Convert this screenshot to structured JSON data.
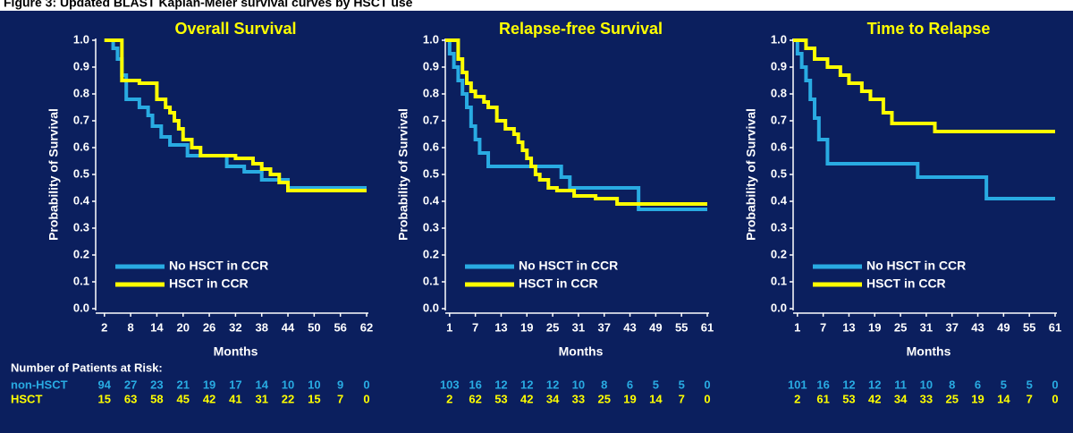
{
  "title": "Figure 3: Updated BLAST Kaplan-Meier survival curves by HSCT use",
  "at_risk": {
    "title": "Number of Patients at Risk:",
    "rows": [
      {
        "name": "non-HSCT",
        "color": "#29abe2"
      },
      {
        "name": "HSCT",
        "color": "#ffff00"
      }
    ]
  },
  "chart_data": [
    {
      "type": "line",
      "step": true,
      "title": "Overall Survival",
      "xlabel": "Months",
      "ylabel": "Probability of Survival",
      "xlim": [
        0,
        62
      ],
      "xticks": [
        2,
        8,
        14,
        20,
        26,
        32,
        38,
        44,
        50,
        56,
        62
      ],
      "ylim": [
        0,
        1
      ],
      "yticks": [
        {
          "value": 0,
          "label": "0.0"
        },
        {
          "value": 0.1,
          "label": "0.1"
        },
        {
          "value": 0.2,
          "label": "0.2"
        },
        {
          "value": 0.3,
          "label": "0.3"
        },
        {
          "value": 0.4,
          "label": "0.4"
        },
        {
          "value": 0.5,
          "label": "0.5"
        },
        {
          "value": 0.6,
          "label": "0.6"
        },
        {
          "value": 0.7,
          "label": "0.7"
        },
        {
          "value": 0.8,
          "label": "0.8"
        },
        {
          "value": 0.9,
          "label": "0.9"
        },
        {
          "value": 1,
          "label": "1.0"
        }
      ],
      "series": [
        {
          "name": "No HSCT in CCR",
          "color": "#29abe2",
          "x": [
            2,
            4,
            5,
            6,
            7,
            10,
            12,
            13,
            15,
            17,
            21,
            30,
            34,
            38,
            44,
            62
          ],
          "values": [
            1.0,
            0.97,
            0.93,
            0.87,
            0.78,
            0.75,
            0.72,
            0.68,
            0.64,
            0.61,
            0.57,
            0.53,
            0.51,
            0.48,
            0.45,
            0.45
          ]
        },
        {
          "name": "HSCT in CCR",
          "color": "#ffff00",
          "x": [
            2,
            6,
            10,
            14,
            16,
            17,
            18,
            19,
            20,
            22,
            24,
            32,
            36,
            38,
            40,
            42,
            44,
            62
          ],
          "values": [
            1.0,
            0.85,
            0.84,
            0.78,
            0.75,
            0.73,
            0.7,
            0.67,
            0.63,
            0.6,
            0.57,
            0.56,
            0.54,
            0.52,
            0.5,
            0.47,
            0.44,
            0.44
          ]
        }
      ],
      "at_risk": [
        [
          94,
          27,
          23,
          21,
          19,
          17,
          14,
          10,
          10,
          9,
          0
        ],
        [
          15,
          63,
          58,
          45,
          42,
          41,
          31,
          22,
          15,
          7,
          0
        ]
      ]
    },
    {
      "type": "line",
      "step": true,
      "title": "Relapse-free Survival",
      "xlabel": "Months",
      "ylabel": "Probability of Survival",
      "xlim": [
        0,
        61
      ],
      "xticks": [
        1,
        7,
        13,
        19,
        25,
        31,
        37,
        43,
        49,
        55,
        61
      ],
      "ylim": [
        0,
        1
      ],
      "yticks": [
        {
          "value": 0,
          "label": "0.0"
        },
        {
          "value": 0.1,
          "label": "0.1"
        },
        {
          "value": 0.2,
          "label": "0.2"
        },
        {
          "value": 0.3,
          "label": "0.3"
        },
        {
          "value": 0.4,
          "label": "0.4"
        },
        {
          "value": 0.5,
          "label": "0.5"
        },
        {
          "value": 0.6,
          "label": "0.6"
        },
        {
          "value": 0.7,
          "label": "0.7"
        },
        {
          "value": 0.8,
          "label": "0.8"
        },
        {
          "value": 0.9,
          "label": "0.9"
        },
        {
          "value": 1,
          "label": "1.0"
        }
      ],
      "series": [
        {
          "name": "No HSCT in CCR",
          "color": "#29abe2",
          "x": [
            0,
            1,
            2,
            3,
            4,
            5,
            6,
            7,
            8,
            10,
            27,
            29,
            45,
            61
          ],
          "values": [
            1.0,
            0.95,
            0.9,
            0.85,
            0.8,
            0.75,
            0.68,
            0.63,
            0.58,
            0.53,
            0.49,
            0.45,
            0.37,
            0.37
          ]
        },
        {
          "name": "HSCT in CCR",
          "color": "#ffff00",
          "x": [
            0,
            3,
            4,
            5,
            6,
            7,
            9,
            10,
            12,
            14,
            16,
            17,
            18,
            19,
            20,
            21,
            22,
            24,
            26,
            30,
            35,
            40,
            61
          ],
          "values": [
            1.0,
            0.93,
            0.88,
            0.84,
            0.81,
            0.79,
            0.77,
            0.75,
            0.7,
            0.67,
            0.65,
            0.62,
            0.59,
            0.56,
            0.53,
            0.5,
            0.48,
            0.45,
            0.44,
            0.42,
            0.41,
            0.39,
            0.39
          ]
        }
      ],
      "at_risk": [
        [
          103,
          16,
          12,
          12,
          12,
          10,
          8,
          6,
          5,
          5,
          0
        ],
        [
          2,
          62,
          53,
          42,
          34,
          33,
          25,
          19,
          14,
          7,
          0
        ]
      ]
    },
    {
      "type": "line",
      "step": true,
      "title": "Time to Relapse",
      "xlabel": "Months",
      "ylabel": "Probability of Survival",
      "xlim": [
        0,
        61
      ],
      "xticks": [
        1,
        7,
        13,
        19,
        25,
        31,
        37,
        43,
        49,
        55,
        61
      ],
      "ylim": [
        0,
        1
      ],
      "yticks": [
        {
          "value": 0,
          "label": "0.0"
        },
        {
          "value": 0.1,
          "label": "0.1"
        },
        {
          "value": 0.2,
          "label": "0.2"
        },
        {
          "value": 0.3,
          "label": "0.3"
        },
        {
          "value": 0.4,
          "label": "0.4"
        },
        {
          "value": 0.5,
          "label": "0.5"
        },
        {
          "value": 0.6,
          "label": "0.6"
        },
        {
          "value": 0.7,
          "label": "0.7"
        },
        {
          "value": 0.8,
          "label": "0.8"
        },
        {
          "value": 0.9,
          "label": "0.9"
        },
        {
          "value": 1,
          "label": "1.0"
        }
      ],
      "series": [
        {
          "name": "No HSCT in CCR",
          "color": "#29abe2",
          "x": [
            0,
            1,
            2,
            3,
            4,
            5,
            6,
            8,
            29,
            45,
            61
          ],
          "values": [
            1.0,
            0.95,
            0.9,
            0.85,
            0.78,
            0.71,
            0.63,
            0.54,
            0.49,
            0.41,
            0.41
          ]
        },
        {
          "name": "HSCT in CCR",
          "color": "#ffff00",
          "x": [
            0,
            3,
            5,
            8,
            11,
            13,
            16,
            18,
            21,
            23,
            33,
            61
          ],
          "values": [
            1.0,
            0.97,
            0.93,
            0.9,
            0.87,
            0.84,
            0.81,
            0.78,
            0.73,
            0.69,
            0.66,
            0.66
          ]
        }
      ],
      "at_risk": [
        [
          101,
          16,
          12,
          12,
          11,
          10,
          8,
          6,
          5,
          5,
          0
        ],
        [
          2,
          61,
          53,
          42,
          34,
          33,
          25,
          19,
          14,
          7,
          0
        ]
      ]
    }
  ]
}
